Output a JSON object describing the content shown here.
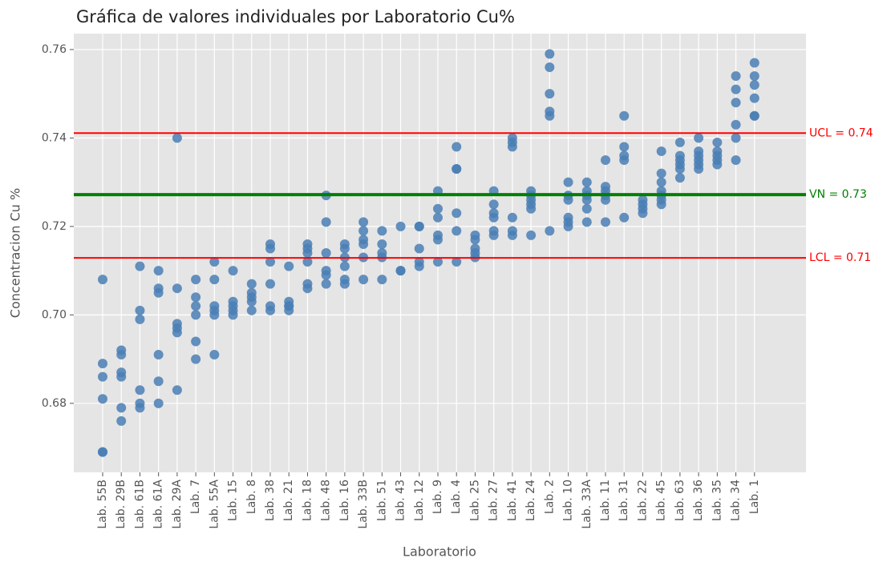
{
  "chart_data": {
    "type": "scatter",
    "title": "Gráfica de valores individuales por Laboratorio Cu%",
    "x_label": "Laboratorio",
    "y_label": "Concentracion Cu %",
    "color": "#4a7fb5",
    "grid": true,
    "categories": [
      "Lab. 55B",
      "Lab. 29B",
      "Lab. 61B",
      "Lab. 61A",
      "Lab. 29A",
      "Lab. 7",
      "Lab. 55A",
      "Lab. 15",
      "Lab. 8",
      "Lab. 38",
      "Lab. 21",
      "Lab. 18",
      "Lab. 48",
      "Lab. 16",
      "Lab. 33B",
      "Lab. 51",
      "Lab. 43",
      "Lab. 12",
      "Lab. 9",
      "Lab. 4",
      "Lab. 25",
      "Lab. 27",
      "Lab. 41",
      "Lab. 24",
      "Lab. 2",
      "Lab. 10",
      "Lab. 33A",
      "Lab. 11",
      "Lab. 31",
      "Lab. 22",
      "Lab. 45",
      "Lab. 63",
      "Lab. 36",
      "Lab. 35",
      "Lab. 34",
      "Lab. 1"
    ],
    "values": [
      [
        0.708,
        0.689,
        0.686,
        0.681,
        0.669,
        0.669
      ],
      [
        0.692,
        0.691,
        0.687,
        0.686,
        0.679,
        0.676
      ],
      [
        0.711,
        0.701,
        0.699,
        0.683,
        0.68,
        0.679
      ],
      [
        0.71,
        0.706,
        0.705,
        0.691,
        0.685,
        0.68
      ],
      [
        0.74,
        0.706,
        0.698,
        0.697,
        0.696,
        0.683
      ],
      [
        0.708,
        0.704,
        0.702,
        0.7,
        0.694,
        0.69
      ],
      [
        0.712,
        0.708,
        0.702,
        0.701,
        0.7,
        0.691
      ],
      [
        0.71,
        0.703,
        0.702,
        0.701,
        0.7
      ],
      [
        0.707,
        0.705,
        0.704,
        0.703,
        0.701
      ],
      [
        0.716,
        0.715,
        0.712,
        0.707,
        0.702,
        0.701
      ],
      [
        0.711,
        0.703,
        0.702,
        0.702,
        0.701
      ],
      [
        0.716,
        0.715,
        0.714,
        0.712,
        0.707,
        0.706
      ],
      [
        0.727,
        0.721,
        0.714,
        0.71,
        0.709,
        0.707
      ],
      [
        0.716,
        0.715,
        0.713,
        0.711,
        0.708,
        0.707
      ],
      [
        0.721,
        0.719,
        0.717,
        0.716,
        0.713,
        0.708
      ],
      [
        0.719,
        0.716,
        0.714,
        0.713,
        0.708
      ],
      [
        0.72,
        0.71,
        0.71
      ],
      [
        0.72,
        0.72,
        0.715,
        0.712,
        0.711
      ],
      [
        0.728,
        0.724,
        0.722,
        0.718,
        0.717,
        0.712
      ],
      [
        0.738,
        0.733,
        0.733,
        0.723,
        0.719,
        0.712
      ],
      [
        0.718,
        0.717,
        0.715,
        0.714,
        0.713
      ],
      [
        0.728,
        0.725,
        0.723,
        0.722,
        0.719,
        0.718
      ],
      [
        0.74,
        0.739,
        0.738,
        0.722,
        0.719,
        0.718
      ],
      [
        0.728,
        0.727,
        0.726,
        0.725,
        0.724,
        0.718
      ],
      [
        0.759,
        0.756,
        0.75,
        0.746,
        0.745,
        0.719
      ],
      [
        0.73,
        0.727,
        0.726,
        0.722,
        0.721,
        0.72
      ],
      [
        0.73,
        0.728,
        0.727,
        0.726,
        0.724,
        0.721
      ],
      [
        0.735,
        0.729,
        0.728,
        0.727,
        0.726,
        0.721
      ],
      [
        0.745,
        0.738,
        0.736,
        0.735,
        0.722
      ],
      [
        0.726,
        0.725,
        0.724,
        0.723
      ],
      [
        0.737,
        0.732,
        0.73,
        0.728,
        0.727,
        0.726,
        0.725
      ],
      [
        0.739,
        0.736,
        0.735,
        0.734,
        0.733,
        0.731
      ],
      [
        0.74,
        0.737,
        0.736,
        0.735,
        0.734,
        0.733
      ],
      [
        0.739,
        0.737,
        0.736,
        0.735,
        0.734
      ],
      [
        0.754,
        0.751,
        0.748,
        0.743,
        0.74,
        0.735
      ],
      [
        0.757,
        0.754,
        0.752,
        0.749,
        0.745,
        0.745
      ]
    ],
    "ylim": [
      0.6644,
      0.7636
    ],
    "yticks": [
      0.68,
      {
        "value": 0.7,
        "label": "0.70"
      },
      0.72,
      0.74,
      0.76
    ],
    "hlines": [
      {
        "value": 0.7411,
        "label": "UCL = 0.74",
        "color": "#ff0000",
        "width": 2
      },
      {
        "value": 0.7272,
        "label": "VN = 0.73",
        "color": "#008000",
        "width": 4
      },
      {
        "value": 0.7129,
        "label": "LCL = 0.71",
        "color": "#ff0000",
        "width": 2
      }
    ]
  }
}
